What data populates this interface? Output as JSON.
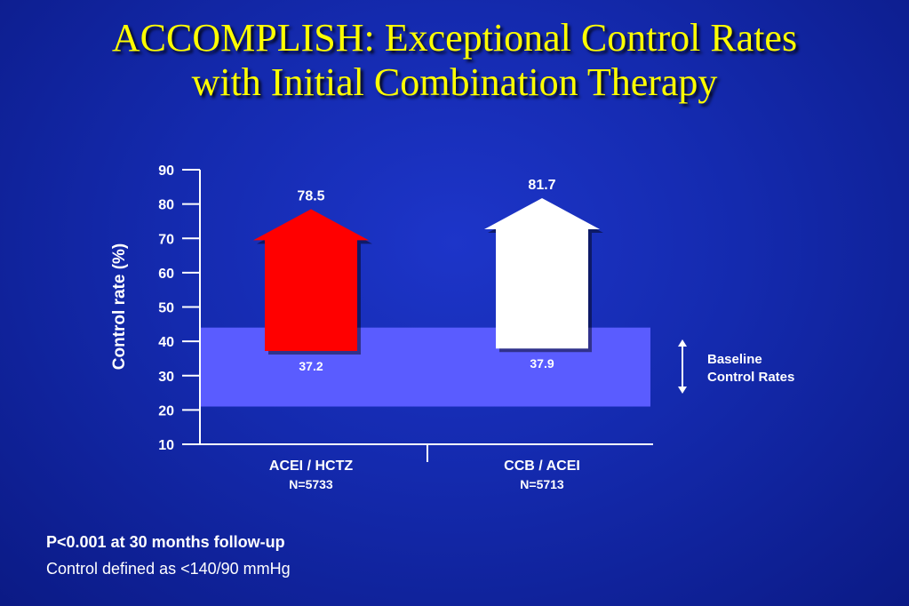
{
  "title": {
    "line1": "ACCOMPLISH: Exceptional Control Rates",
    "line2": "with Initial Combination Therapy"
  },
  "colors": {
    "title": "#ffff00",
    "acei_hctz": "#ff0000",
    "ccb_acei": "#ffffff",
    "baseline_band": "#5a5cff",
    "axis": "#ffffff",
    "background": "#142aae"
  },
  "chart_data": {
    "type": "bar",
    "ylabel": "Control rate (%)",
    "ylim": [
      10,
      90
    ],
    "yticks": [
      90,
      80,
      70,
      60,
      50,
      40,
      30,
      20,
      10
    ],
    "categories": [
      {
        "label": "ACEI / HCTZ",
        "n": "N=5733"
      },
      {
        "label": "CCB / ACEI",
        "n": "N=5713"
      }
    ],
    "series": [
      {
        "name": "Baseline",
        "values": [
          37.2,
          37.9
        ]
      },
      {
        "name": "Follow-up",
        "values": [
          78.5,
          81.7
        ]
      }
    ],
    "baseline_band": {
      "range": [
        21,
        44
      ],
      "label_line1": "Baseline",
      "label_line2": "Control Rates"
    }
  },
  "footnotes": {
    "line1": "P<0.001 at 30 months follow-up",
    "line2": "Control defined as <140/90 mmHg"
  }
}
